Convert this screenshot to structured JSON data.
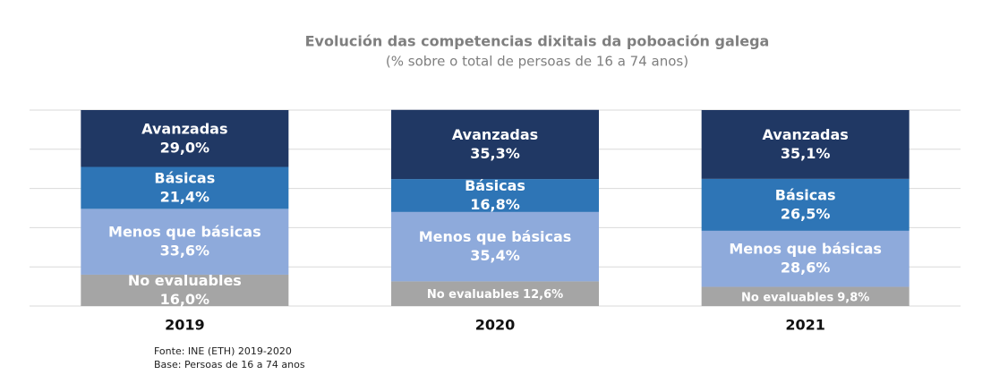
{
  "chart_data": {
    "type": "stacked_bar",
    "title": "Evolución das competencias dixitais da poboación galega",
    "subtitle": "(% sobre o total de persoas de 16 a 74 anos)",
    "categories": [
      "2019",
      "2020",
      "2021"
    ],
    "series": [
      {
        "name": "No evaluables",
        "color": "#a5a5a5",
        "values": [
          16.0,
          12.6,
          9.8
        ],
        "value_labels": [
          "16,0%",
          "12,6%",
          "9,8%"
        ]
      },
      {
        "name": "Menos que básicas",
        "color": "#8eaadb",
        "values": [
          33.6,
          35.4,
          28.6
        ],
        "value_labels": [
          "33,6%",
          "35,4%",
          "28,6%"
        ]
      },
      {
        "name": "Básicas",
        "color": "#2e75b6",
        "values": [
          21.4,
          16.8,
          26.5
        ],
        "value_labels": [
          "21,4%",
          "16,8%",
          "26,5%"
        ]
      },
      {
        "name": "Avanzadas",
        "color": "#203864",
        "values": [
          29.0,
          35.3,
          35.1
        ],
        "value_labels": [
          "29,0%",
          "35,3%",
          "35,1%"
        ]
      }
    ],
    "ylim": [
      0,
      100
    ],
    "yticks": [
      0,
      20,
      40,
      60,
      80,
      100
    ],
    "grid": true,
    "source": [
      "Fonte: INE (ETH) 2019-2020",
      "Base: Persoas de 16 a 74 anos"
    ]
  }
}
